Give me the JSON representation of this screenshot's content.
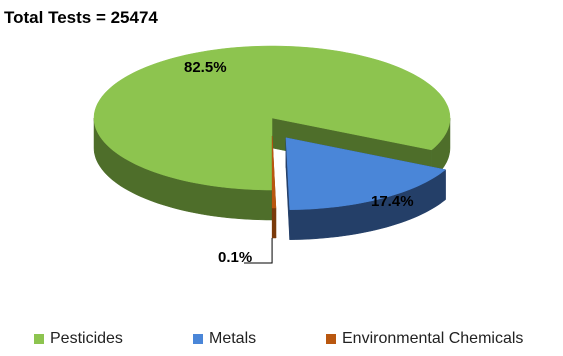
{
  "title": "Total Tests = 25474",
  "chart_data": {
    "type": "pie",
    "style": "3d-exploded",
    "total": 25474,
    "slices": [
      {
        "label": "Pesticides",
        "percent": 82.5,
        "label_text": "82.5%",
        "color": "#8DC44F",
        "side_color": "#4E6E2A"
      },
      {
        "label": "Metals",
        "percent": 17.4,
        "label_text": "17.4%",
        "color": "#4A86D8",
        "side_color": "#243F68"
      },
      {
        "label": "Environmental Chemicals",
        "percent": 0.1,
        "label_text": "0.1%",
        "color": "#B9570F",
        "side_color": "#7A3A0A"
      }
    ],
    "legend_position": "bottom"
  }
}
